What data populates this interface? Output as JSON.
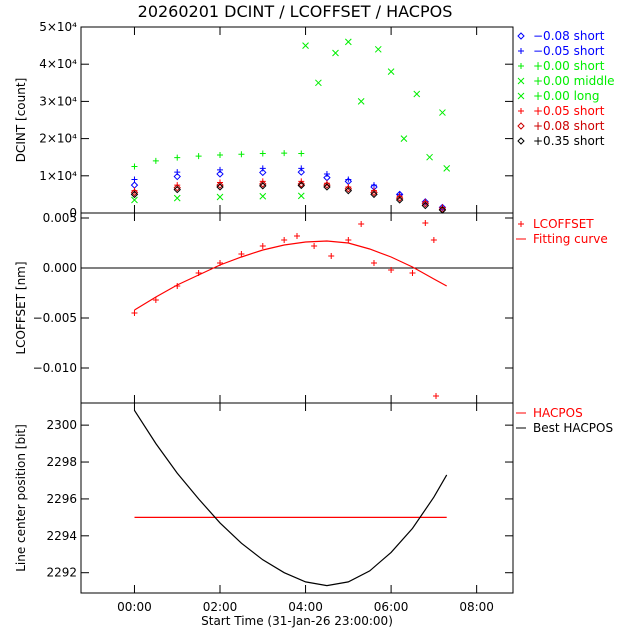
{
  "title": "20260201 DCINT / LCOFFSET / HACPOS",
  "colors": {
    "blue": "#0000ff",
    "green": "#00ee00",
    "red": "#ff0000",
    "darkred": "#cc0000",
    "black": "#000000"
  },
  "chart_data": [
    {
      "type": "scatter",
      "panel": "top",
      "ylabel": "DCINT [count]",
      "ylim": [
        0,
        50000
      ],
      "yticks": [
        {
          "value": 0,
          "label": "0"
        },
        {
          "value": 10000,
          "label": "1×10⁴"
        },
        {
          "value": 20000,
          "label": "2×10⁴"
        },
        {
          "value": 30000,
          "label": "3×10⁴"
        },
        {
          "value": 40000,
          "label": "4×10⁴"
        },
        {
          "value": 50000,
          "label": "5×10⁴"
        }
      ],
      "xlim_hours": [
        -1.25,
        8.85
      ],
      "legend_placement": "right",
      "series": [
        {
          "key": "b1",
          "label": "−0.08 short",
          "marker": "diamond",
          "color": "#0000ff",
          "x": [
            0.0,
            1.0,
            2.0,
            3.0,
            3.9,
            4.5,
            5.0,
            5.6,
            6.2,
            6.8,
            7.2
          ],
          "y": [
            7500,
            9800,
            10500,
            10900,
            11000,
            9500,
            8500,
            7000,
            5000,
            3000,
            1500
          ]
        },
        {
          "key": "b2",
          "label": "−0.05 short",
          "marker": "plus",
          "color": "#0000ff",
          "x": [
            0.0,
            1.0,
            2.0,
            3.0,
            3.9,
            4.5,
            5.0,
            5.6,
            6.2,
            6.8,
            7.2
          ],
          "y": [
            9000,
            11000,
            11600,
            12000,
            12000,
            10500,
            9000,
            7500,
            5000,
            3000,
            1500
          ]
        },
        {
          "key": "g1",
          "label": "+0.00 short",
          "marker": "plus",
          "color": "#00ee00",
          "x": [
            0.0,
            0.5,
            1.0,
            1.5,
            2.0,
            2.5,
            3.0,
            3.5,
            3.9
          ],
          "y": [
            12500,
            14000,
            14900,
            15300,
            15600,
            15800,
            16000,
            16100,
            16000
          ]
        },
        {
          "key": "g2",
          "label": "+0.00 middle",
          "marker": "x",
          "color": "#00ee00",
          "x": [
            4.0,
            4.3,
            4.7,
            5.0,
            5.3,
            5.7,
            6.0,
            6.3,
            6.6,
            6.9,
            7.2,
            7.3
          ],
          "y": [
            45000,
            35000,
            43000,
            46000,
            30000,
            44000,
            38000,
            20000,
            32000,
            15000,
            27000,
            12000
          ]
        },
        {
          "key": "g3",
          "label": "+0.00 long",
          "marker": "x",
          "color": "#00ee00",
          "x": [
            0.0,
            1.0,
            2.0,
            3.0,
            3.9
          ],
          "y": [
            3500,
            4000,
            4300,
            4500,
            4600
          ]
        },
        {
          "key": "r1",
          "label": "+0.05 short",
          "marker": "plus",
          "color": "#ff0000",
          "x": [
            0.0,
            1.0,
            2.0,
            3.0,
            3.9,
            4.5,
            5.0,
            5.6,
            6.2,
            6.8,
            7.2
          ],
          "y": [
            6000,
            7500,
            8200,
            8500,
            8500,
            8000,
            7000,
            6000,
            4500,
            3000,
            1500
          ]
        },
        {
          "key": "r2",
          "label": "+0.08 short",
          "marker": "diamond",
          "color": "#cc0000",
          "x": [
            0.0,
            1.0,
            2.0,
            3.0,
            3.9,
            4.5,
            5.0,
            5.6,
            6.2,
            6.8,
            7.2
          ],
          "y": [
            5500,
            6800,
            7500,
            7800,
            7800,
            7500,
            6500,
            5500,
            4000,
            2500,
            1000
          ]
        },
        {
          "key": "k1",
          "label": "+0.35 short",
          "marker": "diamond",
          "color": "#000000",
          "x": [
            0.0,
            1.0,
            2.0,
            3.0,
            3.9,
            4.5,
            5.0,
            5.6,
            6.2,
            6.8,
            7.2
          ],
          "y": [
            5000,
            6300,
            7000,
            7300,
            7400,
            7000,
            6000,
            5000,
            3500,
            2000,
            800
          ]
        }
      ]
    },
    {
      "type": "scatter",
      "panel": "middle",
      "ylabel": "LCOFFSET [nm]",
      "ylim": [
        -0.0135,
        0.0055
      ],
      "yticks": [
        {
          "value": -0.01,
          "label": "−0.010"
        },
        {
          "value": -0.005,
          "label": "−0.005"
        },
        {
          "value": 0.0,
          "label": "0.000"
        },
        {
          "value": 0.005,
          "label": "0.005"
        }
      ],
      "reference_line": 0.0,
      "legend_placement": "right",
      "series": [
        {
          "key": "lc",
          "label": "LCOFFSET",
          "marker": "plus",
          "color": "#ff0000",
          "x": [
            0.0,
            0.5,
            1.0,
            1.5,
            2.0,
            2.5,
            3.0,
            3.5,
            3.8,
            4.2,
            4.6,
            5.0,
            5.3,
            5.6,
            6.0,
            6.5,
            6.8,
            7.0,
            7.05
          ],
          "y": [
            -0.0045,
            -0.0032,
            -0.0018,
            -0.0005,
            0.0005,
            0.0014,
            0.0022,
            0.0028,
            0.0032,
            0.0022,
            0.0012,
            0.0028,
            0.0044,
            0.0005,
            -0.0002,
            -0.0005,
            0.0045,
            0.0028,
            -0.0128
          ]
        },
        {
          "key": "fit",
          "label": "Fitting curve",
          "marker": "line",
          "color": "#ff0000",
          "x": [
            0.0,
            0.5,
            1.0,
            1.5,
            2.0,
            2.5,
            3.0,
            3.5,
            4.0,
            4.5,
            5.0,
            5.5,
            6.0,
            6.5,
            7.0,
            7.3
          ],
          "y": [
            -0.0042,
            -0.0029,
            -0.0017,
            -0.0007,
            0.0003,
            0.0011,
            0.0018,
            0.0023,
            0.0026,
            0.0027,
            0.0025,
            0.0019,
            0.0011,
            0.0001,
            -0.0011,
            -0.0018
          ]
        }
      ]
    },
    {
      "type": "line",
      "panel": "bottom",
      "ylabel": "Line center position [bit]",
      "xlabel": "Start Time (31-Jan-26 23:00:00)",
      "ylim": [
        2290.9,
        2301.2
      ],
      "yticks": [
        {
          "value": 2292,
          "label": "2292"
        },
        {
          "value": 2294,
          "label": "2294"
        },
        {
          "value": 2296,
          "label": "2296"
        },
        {
          "value": 2298,
          "label": "2298"
        },
        {
          "value": 2300,
          "label": "2300"
        }
      ],
      "xticks": [
        {
          "value": 0,
          "label": "00:00"
        },
        {
          "value": 2,
          "label": "02:00"
        },
        {
          "value": 4,
          "label": "04:00"
        },
        {
          "value": 6,
          "label": "06:00"
        },
        {
          "value": 8,
          "label": "08:00"
        }
      ],
      "legend_placement": "right",
      "series": [
        {
          "key": "hac",
          "label": "HACPOS",
          "color": "#ff0000",
          "x": [
            0.0,
            7.3
          ],
          "y": [
            2295.0,
            2295.0
          ]
        },
        {
          "key": "best",
          "label": "Best HACPOS",
          "color": "#000000",
          "x": [
            0.0,
            0.5,
            1.0,
            1.5,
            2.0,
            2.5,
            3.0,
            3.5,
            4.0,
            4.5,
            5.0,
            5.5,
            6.0,
            6.5,
            7.0,
            7.3
          ],
          "y": [
            2300.8,
            2299.0,
            2297.4,
            2296.0,
            2294.7,
            2293.6,
            2292.7,
            2292.0,
            2291.5,
            2291.3,
            2291.5,
            2292.1,
            2293.1,
            2294.4,
            2296.1,
            2297.3
          ]
        }
      ]
    }
  ]
}
